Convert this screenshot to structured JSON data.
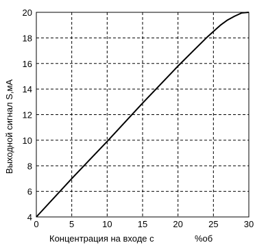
{
  "chart_data": {
    "type": "line",
    "title": "",
    "xlabel": "Концентрация на входе c",
    "xlabel_unit": "%об",
    "ylabel": "Выходной сигнал S,мА",
    "xlim": [
      0,
      30
    ],
    "ylim": [
      4,
      20
    ],
    "xticks": [
      "0",
      "5",
      "10",
      "15",
      "20",
      "25",
      "30"
    ],
    "yticks": [
      "4",
      "6",
      "8",
      "10",
      "12",
      "14",
      "16",
      "18",
      "20"
    ],
    "grid": true,
    "grid_style": "dashed",
    "line_color": "#000000",
    "series": [
      {
        "x": [
          0,
          5,
          10,
          15,
          20,
          22,
          24,
          25,
          26,
          27,
          28,
          29,
          30
        ],
        "values": [
          4.0,
          7.0,
          9.9,
          12.9,
          15.8,
          16.9,
          18.0,
          18.5,
          19.0,
          19.4,
          19.7,
          19.95,
          20.0
        ]
      }
    ]
  }
}
